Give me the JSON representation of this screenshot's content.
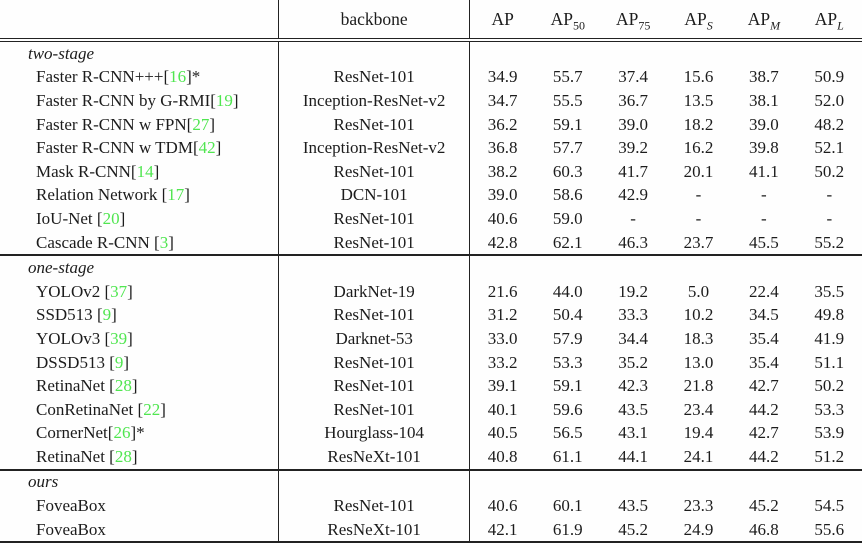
{
  "table": {
    "citation_color": "#50e650",
    "brackets": {
      "open": "[",
      "close": "]"
    },
    "header": {
      "method": "",
      "backbone": "backbone",
      "metrics": [
        {
          "base": "AP",
          "sub": ""
        },
        {
          "base": "AP",
          "sub": "50"
        },
        {
          "base": "AP",
          "sub": "75"
        },
        {
          "base": "AP",
          "sub": "S"
        },
        {
          "base": "AP",
          "sub": "M"
        },
        {
          "base": "AP",
          "sub": "L"
        }
      ]
    },
    "sections": [
      {
        "label": "two-stage",
        "rows": [
          {
            "name": "Faster R-CNN+++",
            "cite": "16",
            "suffix": "*",
            "backbone": "ResNet-101",
            "values": [
              "34.9",
              "55.7",
              "37.4",
              "15.6",
              "38.7",
              "50.9"
            ]
          },
          {
            "name": "Faster R-CNN by G-RMI",
            "cite": "19",
            "suffix": "",
            "backbone": "Inception-ResNet-v2",
            "values": [
              "34.7",
              "55.5",
              "36.7",
              "13.5",
              "38.1",
              "52.0"
            ]
          },
          {
            "name": "Faster R-CNN w FPN",
            "cite": "27",
            "suffix": "",
            "backbone": "ResNet-101",
            "values": [
              "36.2",
              "59.1",
              "39.0",
              "18.2",
              "39.0",
              "48.2"
            ]
          },
          {
            "name": "Faster R-CNN w TDM",
            "cite": "42",
            "suffix": "",
            "backbone": "Inception-ResNet-v2",
            "values": [
              "36.8",
              "57.7",
              "39.2",
              "16.2",
              "39.8",
              "52.1"
            ]
          },
          {
            "name": "Mask R-CNN",
            "cite": "14",
            "suffix": "",
            "backbone": "ResNet-101",
            "values": [
              "38.2",
              "60.3",
              "41.7",
              "20.1",
              "41.1",
              "50.2"
            ]
          },
          {
            "name": "Relation Network ",
            "cite": "17",
            "suffix": "",
            "backbone": "DCN-101",
            "values": [
              "39.0",
              "58.6",
              "42.9",
              "-",
              "-",
              "-"
            ]
          },
          {
            "name": "IoU-Net ",
            "cite": "20",
            "suffix": "",
            "backbone": "ResNet-101",
            "values": [
              "40.6",
              "59.0",
              "-",
              "-",
              "-",
              "-"
            ]
          },
          {
            "name": "Cascade R-CNN ",
            "cite": "3",
            "suffix": "",
            "backbone": "ResNet-101",
            "values": [
              "42.8",
              "62.1",
              "46.3",
              "23.7",
              "45.5",
              "55.2"
            ]
          }
        ]
      },
      {
        "label": "one-stage",
        "rows": [
          {
            "name": "YOLOv2 ",
            "cite": "37",
            "suffix": "",
            "backbone": "DarkNet-19",
            "values": [
              "21.6",
              "44.0",
              "19.2",
              "5.0",
              "22.4",
              "35.5"
            ]
          },
          {
            "name": "SSD513 ",
            "cite": "9",
            "suffix": "",
            "backbone": "ResNet-101",
            "values": [
              "31.2",
              "50.4",
              "33.3",
              "10.2",
              "34.5",
              "49.8"
            ]
          },
          {
            "name": "YOLOv3 ",
            "cite": "39",
            "suffix": "",
            "backbone": "Darknet-53",
            "values": [
              "33.0",
              "57.9",
              "34.4",
              "18.3",
              "35.4",
              "41.9"
            ]
          },
          {
            "name": "DSSD513 ",
            "cite": "9",
            "suffix": "",
            "backbone": "ResNet-101",
            "values": [
              "33.2",
              "53.3",
              "35.2",
              "13.0",
              "35.4",
              "51.1"
            ]
          },
          {
            "name": "RetinaNet ",
            "cite": "28",
            "suffix": "",
            "backbone": "ResNet-101",
            "values": [
              "39.1",
              "59.1",
              "42.3",
              "21.8",
              "42.7",
              "50.2"
            ]
          },
          {
            "name": "ConRetinaNet ",
            "cite": "22",
            "suffix": "",
            "backbone": "ResNet-101",
            "values": [
              "40.1",
              "59.6",
              "43.5",
              "23.4",
              "44.2",
              "53.3"
            ]
          },
          {
            "name": "CornerNet",
            "cite": "26",
            "suffix": "*",
            "backbone": "Hourglass-104",
            "values": [
              "40.5",
              "56.5",
              "43.1",
              "19.4",
              "42.7",
              "53.9"
            ]
          },
          {
            "name": "RetinaNet ",
            "cite": "28",
            "suffix": "",
            "backbone": "ResNeXt-101",
            "values": [
              "40.8",
              "61.1",
              "44.1",
              "24.1",
              "44.2",
              "51.2"
            ]
          }
        ]
      },
      {
        "label": "ours",
        "rows": [
          {
            "name": "FoveaBox",
            "suffix": "",
            "backbone": "ResNet-101",
            "values": [
              "40.6",
              "60.1",
              "43.5",
              "23.3",
              "45.2",
              "54.5"
            ]
          },
          {
            "name": "FoveaBox",
            "suffix": "",
            "backbone": "ResNeXt-101",
            "values": [
              "42.1",
              "61.9",
              "45.2",
              "24.9",
              "46.8",
              "55.6"
            ]
          }
        ]
      }
    ]
  }
}
